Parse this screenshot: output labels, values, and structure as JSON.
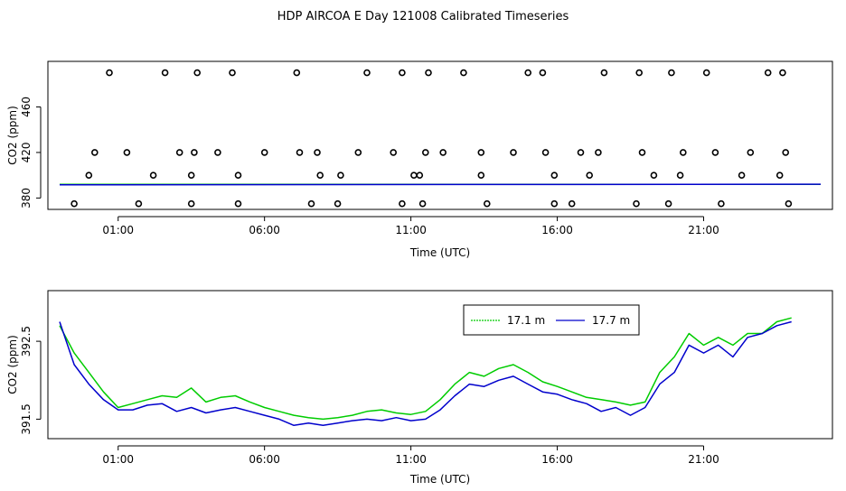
{
  "figure": {
    "title": "HDP AIRCOA E  Day 121008  Calibrated Timeseries"
  },
  "chart_data": [
    {
      "type": "scatter",
      "xlabel": "Time (UTC)",
      "ylabel": "CO2 (ppm)",
      "x_unit": "hours UTC",
      "xlim": [
        -1.4,
        25.4
      ],
      "ylim": [
        370,
        500
      ],
      "x_ticks": [
        1,
        6,
        11,
        16,
        21
      ],
      "x_tick_labels": [
        "01:00",
        "06:00",
        "11:00",
        "16:00",
        "21:00"
      ],
      "y_ticks": [
        380,
        420,
        460
      ],
      "y_tick_labels": [
        "380",
        "420",
        "460"
      ],
      "grid": false,
      "series": [
        {
          "marker": "open-circle",
          "color": "#000000",
          "x": [
            0.2,
            1.3,
            3.1,
            3.6,
            4.4,
            6.0,
            7.2,
            7.8,
            9.2,
            10.4,
            11.5,
            12.1,
            13.4,
            14.5,
            15.6,
            16.8,
            17.4,
            18.9,
            20.3,
            21.4,
            22.6,
            23.8
          ],
          "y": [
            420,
            420,
            420,
            420,
            420,
            420,
            420,
            420,
            420,
            420,
            420,
            420,
            420,
            420,
            420,
            420,
            420,
            420,
            420,
            420,
            420,
            420
          ]
        },
        {
          "marker": "open-circle",
          "color": "#000000",
          "x": [
            -0.5,
            1.7,
            3.5,
            5.1,
            7.6,
            8.5,
            10.7,
            11.4,
            13.6,
            15.9,
            16.5,
            18.7,
            19.8,
            21.6,
            23.9
          ],
          "y": [
            375,
            375,
            375,
            375,
            375,
            375,
            375,
            375,
            375,
            375,
            375,
            375,
            375,
            375,
            375
          ]
        },
        {
          "marker": "open-circle",
          "color": "#000000",
          "x": [
            0.7,
            2.6,
            3.7,
            4.9,
            7.1,
            9.5,
            10.7,
            11.6,
            12.8,
            15.0,
            15.5,
            17.6,
            18.8,
            19.9,
            21.1,
            23.2,
            23.7
          ],
          "y": [
            490,
            490,
            490,
            490,
            490,
            490,
            490,
            490,
            490,
            490,
            490,
            490,
            490,
            490,
            490,
            490,
            490
          ]
        },
        {
          "marker": "open-circle",
          "color": "#000000",
          "x": [
            0,
            2.2,
            3.5,
            5.1,
            7.9,
            8.6,
            11.1,
            11.3,
            13.4,
            15.9,
            17.1,
            19.3,
            20.2,
            22.3,
            23.6
          ],
          "y": [
            400,
            400,
            400,
            400,
            400,
            400,
            400,
            400,
            400,
            400,
            400,
            400,
            400,
            400,
            400
          ]
        },
        {
          "name": "17.1 m",
          "type": "line",
          "color": "#00cc00",
          "x": [
            -1,
            25
          ],
          "y": [
            392,
            392
          ]
        },
        {
          "name": "17.7 m",
          "type": "line",
          "color": "#0000cc",
          "x": [
            -1,
            25
          ],
          "y": [
            391.6,
            392.1
          ]
        }
      ]
    },
    {
      "type": "line",
      "xlabel": "Time (UTC)",
      "ylabel": "CO2 (ppm)",
      "x_unit": "hours UTC",
      "xlim": [
        -1.4,
        25.4
      ],
      "ylim": [
        391.25,
        393.15
      ],
      "x_ticks": [
        1,
        6,
        11,
        16,
        21
      ],
      "x_tick_labels": [
        "01:00",
        "06:00",
        "11:00",
        "16:00",
        "21:00"
      ],
      "y_ticks": [
        391.5,
        392.5
      ],
      "y_tick_labels": [
        "391.5",
        "392.5"
      ],
      "grid": false,
      "legend": "top-right",
      "x": [
        -1,
        -0.5,
        0,
        0.5,
        1,
        1.5,
        2,
        2.5,
        3,
        3.5,
        4,
        4.5,
        5,
        5.5,
        6,
        6.5,
        7,
        7.5,
        8,
        8.5,
        9,
        9.5,
        10,
        10.5,
        11,
        11.5,
        12,
        12.5,
        13,
        13.5,
        14,
        14.5,
        15,
        15.5,
        16,
        16.5,
        17,
        17.5,
        18,
        18.5,
        19,
        19.5,
        20,
        20.5,
        21,
        21.5,
        22,
        22.5,
        23,
        23.5,
        24
      ],
      "series": [
        {
          "name": "17.1 m",
          "color": "#00cc00",
          "values": [
            392.7,
            392.35,
            392.1,
            391.85,
            391.65,
            391.7,
            391.75,
            391.8,
            391.78,
            391.9,
            391.72,
            391.78,
            391.8,
            391.72,
            391.65,
            391.6,
            391.55,
            391.52,
            391.5,
            391.52,
            391.55,
            391.6,
            391.62,
            391.58,
            391.56,
            391.6,
            391.75,
            391.95,
            392.1,
            392.05,
            392.15,
            392.2,
            392.1,
            391.98,
            391.92,
            391.85,
            391.78,
            391.75,
            391.72,
            391.68,
            391.72,
            392.1,
            392.3,
            392.6,
            392.45,
            392.55,
            392.45,
            392.6,
            392.6,
            392.75,
            392.8
          ]
        },
        {
          "name": "17.7 m",
          "color": "#0000cc",
          "values": [
            392.75,
            392.2,
            391.95,
            391.75,
            391.62,
            391.62,
            391.68,
            391.7,
            391.6,
            391.65,
            391.58,
            391.62,
            391.65,
            391.6,
            391.55,
            391.5,
            391.42,
            391.45,
            391.42,
            391.45,
            391.48,
            391.5,
            391.48,
            391.52,
            391.48,
            391.5,
            391.62,
            391.8,
            391.95,
            391.92,
            392.0,
            392.05,
            391.95,
            391.85,
            391.82,
            391.75,
            391.7,
            391.6,
            391.65,
            391.55,
            391.65,
            391.95,
            392.1,
            392.45,
            392.35,
            392.45,
            392.3,
            392.55,
            392.6,
            392.7,
            392.75
          ]
        }
      ]
    }
  ]
}
